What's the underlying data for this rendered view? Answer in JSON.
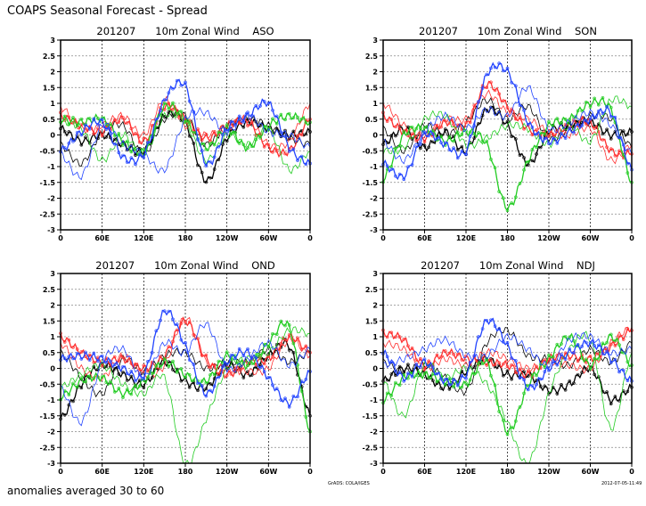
{
  "header": {
    "title": "COAPS Seasonal Forecast - Spread"
  },
  "footer": {
    "note": "anomalies averaged 30 to 60",
    "credit": "GrADS: COLA/IGES",
    "timestamp": "2012-07-05-11:49"
  },
  "colors": {
    "black": "#000000",
    "red": "#ff3030",
    "green": "#22cc22",
    "blue": "#2244ff",
    "grid": "#888888"
  },
  "chart_data": [
    {
      "type": "line",
      "title": "201207      10m Zonal Wind    ASO",
      "xlabel": "",
      "ylabel": "",
      "x": [
        0,
        30,
        60,
        90,
        120,
        150,
        180,
        210,
        240,
        270,
        300,
        330,
        360
      ],
      "xticks": [
        "0",
        "60E",
        "120E",
        "180",
        "120W",
        "60W",
        "0"
      ],
      "yticks": [
        "3",
        "2.5",
        "2",
        "1.5",
        "1",
        "0.5",
        "0",
        "-0.5",
        "-1",
        "-1.5",
        "-2",
        "-2.5",
        "-3"
      ],
      "ylim": [
        -3,
        3
      ],
      "grid": true,
      "series": [
        {
          "color": "black",
          "marker": true,
          "values": [
            0.2,
            -0.2,
            0.0,
            -0.3,
            -0.5,
            0.6,
            0.4,
            -1.45,
            -0.1,
            0.4,
            0.2,
            0.0,
            0.1
          ]
        },
        {
          "color": "black",
          "marker": false,
          "values": [
            -0.3,
            -0.9,
            0.1,
            0.3,
            -0.6,
            0.5,
            0.6,
            -0.3,
            0.3,
            0.5,
            0.3,
            -0.1,
            -0.3
          ]
        },
        {
          "color": "red",
          "marker": true,
          "values": [
            0.6,
            0.3,
            0.1,
            0.5,
            -0.2,
            0.9,
            0.5,
            -0.1,
            0.3,
            0.4,
            -0.4,
            -0.5,
            0.5
          ]
        },
        {
          "color": "red",
          "marker": false,
          "values": [
            0.9,
            0.2,
            0.3,
            0.6,
            0.0,
            1.1,
            0.3,
            0.0,
            0.2,
            0.5,
            -0.3,
            -0.2,
            1.0
          ]
        },
        {
          "color": "green",
          "marker": true,
          "values": [
            0.5,
            0.4,
            0.5,
            -0.2,
            -0.5,
            0.9,
            0.5,
            -0.4,
            0.2,
            -0.4,
            0.3,
            0.6,
            0.4
          ]
        },
        {
          "color": "green",
          "marker": false,
          "values": [
            0.4,
            0.2,
            -0.8,
            0.0,
            -0.6,
            0.6,
            0.4,
            -0.8,
            0.0,
            -0.3,
            0.2,
            -1.1,
            -0.5
          ]
        },
        {
          "color": "blue",
          "marker": true,
          "values": [
            -0.5,
            0.1,
            0.4,
            -0.7,
            -0.6,
            1.1,
            1.55,
            -0.9,
            0.2,
            0.6,
            1.0,
            -0.4,
            -0.9
          ]
        },
        {
          "color": "blue",
          "marker": false,
          "values": [
            -0.6,
            -1.3,
            0.3,
            -0.3,
            -0.6,
            -1.1,
            0.5,
            0.7,
            0.1,
            0.6,
            0.1,
            0.0,
            -0.4
          ]
        }
      ]
    },
    {
      "type": "line",
      "title": "201207      10m Zonal Wind    SON",
      "xlabel": "",
      "ylabel": "",
      "x": [
        0,
        30,
        60,
        90,
        120,
        150,
        180,
        210,
        240,
        270,
        300,
        330,
        360
      ],
      "xticks": [
        "0",
        "60E",
        "120E",
        "180",
        "120W",
        "60W",
        "0"
      ],
      "yticks": [
        "3",
        "2.5",
        "2",
        "1.5",
        "1",
        "0.5",
        "0",
        "-0.5",
        "-1",
        "-1.5",
        "-2",
        "-2.5",
        "-3"
      ],
      "ylim": [
        -3,
        3
      ],
      "grid": true,
      "series": [
        {
          "color": "black",
          "marker": true,
          "values": [
            -0.3,
            0.2,
            -0.4,
            0.1,
            -0.5,
            0.8,
            0.3,
            -0.9,
            0.1,
            0.3,
            0.4,
            0.0,
            0.1
          ]
        },
        {
          "color": "black",
          "marker": false,
          "values": [
            0.2,
            -0.5,
            0.3,
            0.0,
            0.4,
            1.1,
            0.5,
            0.9,
            -0.1,
            0.2,
            0.6,
            0.5,
            -0.4
          ]
        },
        {
          "color": "red",
          "marker": true,
          "values": [
            0.6,
            0.1,
            -0.1,
            0.4,
            0.3,
            1.6,
            0.9,
            0.2,
            0.0,
            0.3,
            0.4,
            -0.5,
            -0.6
          ]
        },
        {
          "color": "red",
          "marker": false,
          "values": [
            1.0,
            0.3,
            0.0,
            0.5,
            0.5,
            1.3,
            0.7,
            0.5,
            0.1,
            0.0,
            0.2,
            -0.8,
            -0.3
          ]
        },
        {
          "color": "green",
          "marker": true,
          "values": [
            -1.4,
            0.0,
            0.2,
            -0.2,
            0.1,
            -0.3,
            -2.3,
            -0.8,
            0.3,
            0.5,
            1.0,
            0.8,
            -1.5
          ]
        },
        {
          "color": "green",
          "marker": false,
          "values": [
            -0.5,
            -0.4,
            0.5,
            0.6,
            -0.3,
            -0.1,
            0.3,
            0.2,
            -0.3,
            0.3,
            -0.2,
            1.1,
            0.9
          ]
        },
        {
          "color": "blue",
          "marker": true,
          "values": [
            -0.9,
            -1.3,
            0.0,
            -0.3,
            -0.5,
            1.9,
            2.0,
            0.4,
            -0.2,
            0.1,
            0.5,
            0.7,
            -1.1
          ]
        },
        {
          "color": "blue",
          "marker": false,
          "values": [
            -0.2,
            -0.8,
            0.1,
            0.6,
            0.2,
            0.8,
            0.6,
            1.5,
            0.2,
            0.4,
            0.7,
            0.3,
            -0.6
          ]
        }
      ]
    },
    {
      "type": "line",
      "title": "201207      10m Zonal Wind    OND",
      "xlabel": "",
      "ylabel": "",
      "x": [
        0,
        30,
        60,
        90,
        120,
        150,
        180,
        210,
        240,
        270,
        300,
        330,
        360
      ],
      "xticks": [
        "0",
        "60E",
        "120E",
        "180",
        "120W",
        "60W",
        "0"
      ],
      "yticks": [
        "3",
        "2.5",
        "2",
        "1.5",
        "1",
        "0.5",
        "0",
        "-0.5",
        "-1",
        "-1.5",
        "-2",
        "-2.5",
        "-3"
      ],
      "ylim": [
        -3,
        3
      ],
      "grid": true,
      "series": [
        {
          "color": "black",
          "marker": true,
          "values": [
            -1.6,
            -0.5,
            0.1,
            -0.2,
            -0.5,
            0.2,
            -0.4,
            -0.6,
            0.1,
            -0.2,
            0.4,
            0.7,
            -1.5
          ]
        },
        {
          "color": "black",
          "marker": false,
          "values": [
            0.5,
            -0.3,
            -0.8,
            0.3,
            -0.1,
            0.4,
            0.5,
            0.0,
            0.2,
            0.2,
            0.6,
            0.2,
            0.5
          ]
        },
        {
          "color": "red",
          "marker": true,
          "values": [
            1.0,
            0.5,
            0.2,
            0.3,
            0.0,
            0.4,
            1.5,
            0.3,
            -0.2,
            0.2,
            0.3,
            1.0,
            0.5
          ]
        },
        {
          "color": "red",
          "marker": false,
          "values": [
            0.8,
            0.0,
            -0.3,
            0.4,
            -0.2,
            0.1,
            1.6,
            0.2,
            0.0,
            -0.1,
            0.0,
            0.9,
            0.4
          ]
        },
        {
          "color": "green",
          "marker": true,
          "values": [
            -0.9,
            -0.4,
            -0.3,
            -0.8,
            -0.4,
            0.2,
            -0.2,
            -0.4,
            0.4,
            0.1,
            0.8,
            1.3,
            -2.0
          ]
        },
        {
          "color": "green",
          "marker": false,
          "values": [
            -0.6,
            -0.2,
            0.1,
            -0.5,
            -0.8,
            -0.3,
            -3.0,
            -1.6,
            0.0,
            0.3,
            0.5,
            1.2,
            1.1
          ]
        },
        {
          "color": "blue",
          "marker": true,
          "values": [
            0.3,
            0.4,
            0.3,
            0.0,
            -0.2,
            1.8,
            0.7,
            -0.8,
            0.2,
            0.5,
            -0.3,
            -1.1,
            -0.1
          ]
        },
        {
          "color": "blue",
          "marker": false,
          "values": [
            -0.6,
            -1.7,
            0.2,
            0.6,
            -0.3,
            0.8,
            0.5,
            1.4,
            0.0,
            0.3,
            0.8,
            0.1,
            0.6
          ]
        }
      ]
    },
    {
      "type": "line",
      "title": "201207      10m Zonal Wind    NDJ",
      "xlabel": "",
      "ylabel": "",
      "x": [
        0,
        30,
        60,
        90,
        120,
        150,
        180,
        210,
        240,
        270,
        300,
        330,
        360
      ],
      "xticks": [
        "0",
        "60E",
        "120E",
        "180",
        "120W",
        "60W",
        "0"
      ],
      "yticks": [
        "3",
        "2.5",
        "2",
        "1.5",
        "1",
        "0.5",
        "0",
        "-0.5",
        "-1",
        "-1.5",
        "-2",
        "-2.5",
        "-3"
      ],
      "ylim": [
        -3,
        3
      ],
      "grid": true,
      "series": [
        {
          "color": "black",
          "marker": true,
          "values": [
            -0.4,
            0.0,
            -0.2,
            -0.6,
            -0.1,
            0.3,
            -0.2,
            -0.2,
            -0.7,
            -0.5,
            0.0,
            -1.0,
            -0.6
          ]
        },
        {
          "color": "black",
          "marker": false,
          "values": [
            0.2,
            -0.1,
            0.1,
            -0.3,
            -0.7,
            0.8,
            1.2,
            0.4,
            0.3,
            0.1,
            0.6,
            0.2,
            0.8
          ]
        },
        {
          "color": "red",
          "marker": true,
          "values": [
            1.1,
            0.9,
            0.1,
            0.5,
            0.3,
            0.2,
            0.1,
            -0.2,
            0.3,
            0.4,
            0.3,
            0.7,
            1.2
          ]
        },
        {
          "color": "red",
          "marker": false,
          "values": [
            0.8,
            0.6,
            0.0,
            0.3,
            0.1,
            0.5,
            0.3,
            0.0,
            0.2,
            0.1,
            0.0,
            0.8,
            1.3
          ]
        },
        {
          "color": "green",
          "marker": true,
          "values": [
            -1.0,
            -0.3,
            -0.2,
            -0.4,
            -0.5,
            0.2,
            -2.0,
            -0.5,
            0.3,
            1.0,
            0.1,
            1.0,
            0.1
          ]
        },
        {
          "color": "green",
          "marker": false,
          "values": [
            -0.4,
            -1.5,
            0.1,
            -0.3,
            0.0,
            -0.5,
            -1.7,
            -3.0,
            -0.8,
            0.6,
            0.9,
            -1.9,
            0.5
          ]
        },
        {
          "color": "blue",
          "marker": true,
          "values": [
            0.5,
            -0.3,
            0.2,
            -0.4,
            -0.2,
            1.5,
            0.7,
            -0.6,
            0.0,
            0.5,
            0.8,
            0.3,
            -0.4
          ]
        },
        {
          "color": "blue",
          "marker": false,
          "values": [
            0.1,
            0.3,
            0.6,
            0.9,
            0.4,
            0.4,
            1.0,
            0.6,
            0.1,
            0.9,
            1.0,
            0.5,
            0.6
          ]
        }
      ]
    }
  ]
}
